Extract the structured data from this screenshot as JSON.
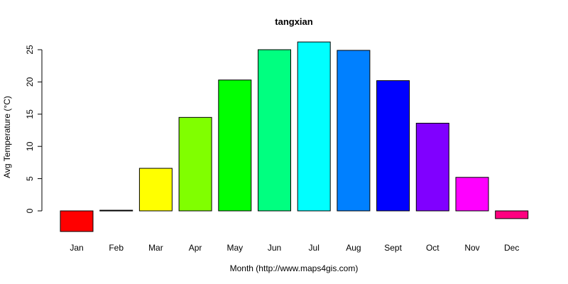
{
  "chart_data": {
    "type": "bar",
    "title": "tangxian",
    "xlabel": "Month (http://www.maps4gis.com)",
    "ylabel": "Avg Temperature (°C)",
    "categories": [
      "Jan",
      "Feb",
      "Mar",
      "Apr",
      "May",
      "Jun",
      "Jul",
      "Aug",
      "Sept",
      "Oct",
      "Nov",
      "Dec"
    ],
    "values": [
      -3.2,
      0.1,
      6.6,
      14.5,
      20.3,
      25.0,
      26.2,
      24.9,
      20.2,
      13.6,
      5.2,
      -1.2
    ],
    "colors": [
      "#ff0000",
      "#ff8000",
      "#ffff00",
      "#80ff00",
      "#00ff00",
      "#00ff80",
      "#00ffff",
      "#0080ff",
      "#0000ff",
      "#8000ff",
      "#ff00ff",
      "#ff0080"
    ],
    "yticks": [
      0,
      5,
      10,
      15,
      20,
      25
    ],
    "ylim": [
      -3.2,
      26.2
    ],
    "grid": false,
    "legend": "none"
  }
}
